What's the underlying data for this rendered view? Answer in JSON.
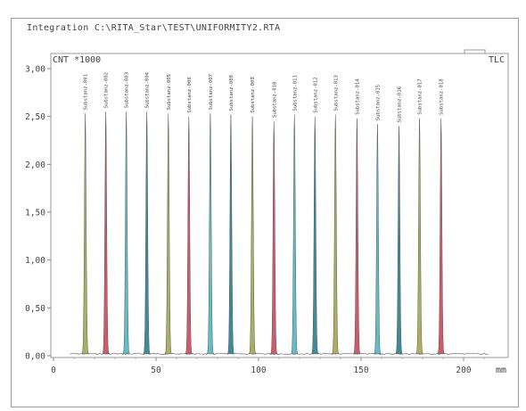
{
  "window": {
    "title": "Integration  C:\\RITA_Star\\TEST\\UNIFORMITY2.RTA"
  },
  "chart_data": {
    "type": "line",
    "y_unit_label": "CNT *1000",
    "x_unit_label": "mm",
    "mode_label": "TLC",
    "xlim": [
      0,
      220
    ],
    "ylim": [
      0,
      3.1
    ],
    "x_ticks": [
      0,
      50,
      100,
      150,
      200
    ],
    "x_tick_labels": [
      "0",
      "50",
      "100",
      "150",
      "200"
    ],
    "y_ticks": [
      0,
      0.5,
      1.0,
      1.5,
      2.0,
      2.5,
      3.0
    ],
    "y_tick_labels": [
      "0,00",
      "0,50",
      "1,00",
      "1,50",
      "2,00",
      "2,50",
      "3,00"
    ],
    "grid": false,
    "series": [
      {
        "name": "Substanz-001",
        "x": 15.5,
        "height": 2.53,
        "color": "#a9b061"
      },
      {
        "name": "Substanz-002",
        "x": 25.5,
        "height": 2.55,
        "color": "#cf5a6a"
      },
      {
        "name": "Substanz-003",
        "x": 35.5,
        "height": 2.55,
        "color": "#63bcc6"
      },
      {
        "name": "Substanz-004",
        "x": 45.5,
        "height": 2.55,
        "color": "#3f8b9a"
      },
      {
        "name": "Substanz-005",
        "x": 56.0,
        "height": 2.53,
        "color": "#a9b061"
      },
      {
        "name": "Substanz-006",
        "x": 66.0,
        "height": 2.5,
        "color": "#cf5a6a"
      },
      {
        "name": "Substanz-007",
        "x": 76.5,
        "height": 2.53,
        "color": "#63bcc6"
      },
      {
        "name": "Substanz-008",
        "x": 86.5,
        "height": 2.52,
        "color": "#3f8b9a"
      },
      {
        "name": "Substanz-009",
        "x": 97.0,
        "height": 2.5,
        "color": "#a9b061"
      },
      {
        "name": "Substanz-010",
        "x": 107.5,
        "height": 2.45,
        "color": "#cf5a6a"
      },
      {
        "name": "Substanz-011",
        "x": 117.5,
        "height": 2.52,
        "color": "#63bcc6"
      },
      {
        "name": "Substanz-012",
        "x": 127.5,
        "height": 2.5,
        "color": "#3f8b9a"
      },
      {
        "name": "Substanz-013",
        "x": 137.5,
        "height": 2.52,
        "color": "#a9b061"
      },
      {
        "name": "Substanz-014",
        "x": 148.0,
        "height": 2.48,
        "color": "#cf5a6a"
      },
      {
        "name": "Substanz-015",
        "x": 158.0,
        "height": 2.42,
        "color": "#63bcc6"
      },
      {
        "name": "Substanz-016",
        "x": 168.5,
        "height": 2.4,
        "color": "#3f8b9a"
      },
      {
        "name": "Substanz-017",
        "x": 178.5,
        "height": 2.48,
        "color": "#a9b061"
      },
      {
        "name": "Substanz-018",
        "x": 189.0,
        "height": 2.48,
        "color": "#cf5a6a"
      }
    ],
    "baseline": {
      "x_start": 8,
      "x_end": 212,
      "level": 0.02
    }
  }
}
